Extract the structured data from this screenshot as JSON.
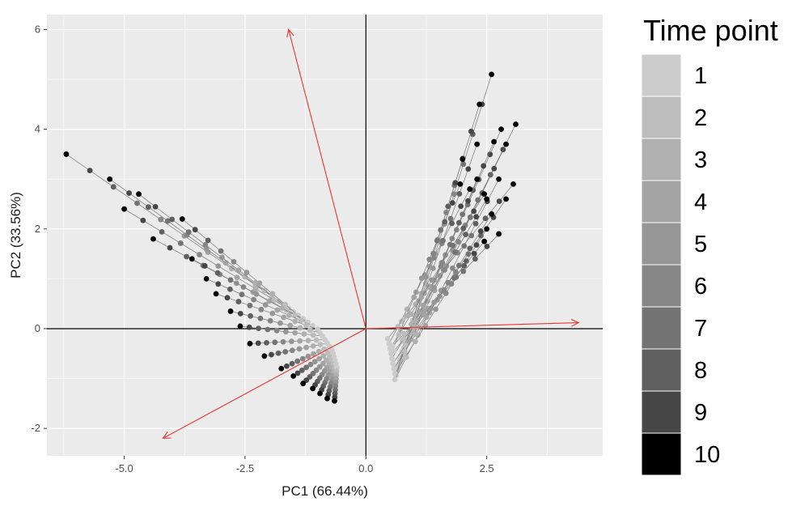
{
  "chart_data": {
    "type": "scatter",
    "title": "",
    "xlabel": "PC1 (66.44%)",
    "ylabel": "PC2 (33.56%)",
    "xlim": [
      -6.6,
      4.9
    ],
    "ylim": [
      -2.55,
      6.3
    ],
    "x_ticks": [
      -5.0,
      -2.5,
      0.0,
      2.5
    ],
    "x_tick_labels": [
      "-5.0",
      "-2.5",
      "0.0",
      "2.5"
    ],
    "y_ticks": [
      -2,
      0,
      2,
      4,
      6
    ],
    "y_tick_labels": [
      "-2",
      "0",
      "2",
      "4",
      "6"
    ],
    "grid": true,
    "panel_background": "#ebebeb",
    "grid_color": "#ffffff",
    "arrow_color": "#e8352e",
    "reference_lines": {
      "x": 0,
      "y": 0,
      "color": "#000000"
    },
    "legend": {
      "title": "Time point",
      "position": "right",
      "levels": [
        {
          "label": "1",
          "color": "#cccccc"
        },
        {
          "label": "2",
          "color": "#bdbdbd"
        },
        {
          "label": "3",
          "color": "#b0b0b0"
        },
        {
          "label": "4",
          "color": "#a3a3a3"
        },
        {
          "label": "5",
          "color": "#969696"
        },
        {
          "label": "6",
          "color": "#868686"
        },
        {
          "label": "7",
          "color": "#737373"
        },
        {
          "label": "8",
          "color": "#5f5f5f"
        },
        {
          "label": "9",
          "color": "#464646"
        },
        {
          "label": "10",
          "color": "#000000"
        }
      ]
    },
    "loading_arrows": [
      {
        "from": [
          0,
          0
        ],
        "to": [
          -1.6,
          6.0
        ]
      },
      {
        "from": [
          0,
          0
        ],
        "to": [
          4.4,
          0.12
        ]
      },
      {
        "from": [
          0,
          0
        ],
        "to": [
          -4.2,
          -2.2
        ]
      }
    ],
    "trajectory_groups": [
      {
        "name": "left",
        "start_tp10": [
          [
            -6.2,
            3.5
          ],
          [
            -5.3,
            3.0
          ],
          [
            -4.7,
            2.7
          ],
          [
            -5.0,
            2.4
          ],
          [
            -3.8,
            2.2
          ],
          [
            -4.4,
            1.8
          ],
          [
            -3.6,
            1.4
          ],
          [
            -3.3,
            1.0
          ],
          [
            -3.1,
            0.7
          ],
          [
            -2.8,
            0.35
          ],
          [
            -2.6,
            0.05
          ],
          [
            -2.4,
            -0.3
          ],
          [
            -2.1,
            -0.55
          ],
          [
            -1.75,
            -0.8
          ],
          [
            -1.5,
            -0.95
          ],
          [
            -1.3,
            -1.1
          ],
          [
            -1.1,
            -1.2
          ],
          [
            -0.95,
            -1.3
          ],
          [
            -0.8,
            -1.4
          ],
          [
            -0.65,
            -1.45
          ]
        ],
        "end_tp1": [
          [
            -1.8,
            0.55
          ],
          [
            -1.7,
            0.48
          ],
          [
            -1.6,
            0.41
          ],
          [
            -1.5,
            0.34
          ],
          [
            -1.4,
            0.27
          ],
          [
            -1.3,
            0.2
          ],
          [
            -1.2,
            0.13
          ],
          [
            -1.1,
            0.06
          ],
          [
            -1.0,
            -0.01
          ],
          [
            -0.95,
            -0.08
          ],
          [
            -0.9,
            -0.15
          ],
          [
            -0.85,
            -0.22
          ],
          [
            -0.8,
            -0.29
          ],
          [
            -0.75,
            -0.36
          ],
          [
            -0.7,
            -0.43
          ],
          [
            -0.68,
            -0.5
          ],
          [
            -0.66,
            -0.57
          ],
          [
            -0.64,
            -0.64
          ],
          [
            -0.62,
            -0.71
          ],
          [
            -0.6,
            -0.78
          ]
        ]
      },
      {
        "name": "right",
        "start_tp10": [
          [
            2.6,
            5.1
          ],
          [
            2.35,
            4.5
          ],
          [
            3.1,
            4.1
          ],
          [
            2.8,
            4.0
          ],
          [
            2.65,
            3.75
          ],
          [
            2.9,
            3.7
          ],
          [
            2.3,
            3.7
          ],
          [
            2.0,
            3.4
          ],
          [
            2.3,
            3.0
          ],
          [
            2.75,
            3.0
          ],
          [
            3.05,
            2.9
          ],
          [
            2.15,
            2.8
          ],
          [
            2.45,
            2.7
          ],
          [
            1.95,
            2.9
          ],
          [
            2.5,
            2.6
          ],
          [
            2.9,
            2.6
          ],
          [
            2.6,
            2.3
          ],
          [
            2.5,
            2.0
          ],
          [
            2.75,
            1.9
          ],
          [
            2.45,
            1.75
          ]
        ],
        "end_tp1": [
          [
            0.85,
            -0.3
          ],
          [
            0.8,
            -0.38
          ],
          [
            0.75,
            -0.46
          ],
          [
            0.72,
            -0.54
          ],
          [
            0.7,
            -0.62
          ],
          [
            0.68,
            -0.7
          ],
          [
            0.66,
            -0.78
          ],
          [
            0.64,
            -0.86
          ],
          [
            0.62,
            -0.94
          ],
          [
            0.6,
            -1.02
          ],
          [
            0.45,
            -0.2
          ],
          [
            0.48,
            -0.3
          ],
          [
            0.5,
            -0.4
          ],
          [
            0.52,
            -0.5
          ],
          [
            0.54,
            -0.6
          ],
          [
            0.56,
            -0.7
          ],
          [
            0.58,
            -0.8
          ],
          [
            0.6,
            -0.9
          ],
          [
            0.55,
            -0.35
          ],
          [
            0.58,
            -0.45
          ]
        ]
      }
    ]
  }
}
